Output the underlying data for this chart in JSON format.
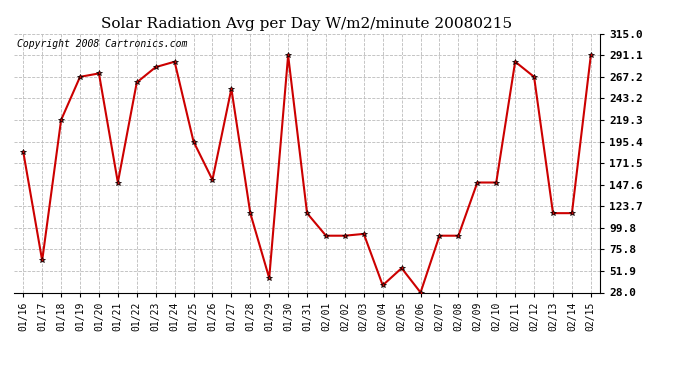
{
  "title": "Solar Radiation Avg per Day W/m2/minute 20080215",
  "copyright": "Copyright 2008 Cartronics.com",
  "dates": [
    "01/16",
    "01/17",
    "01/18",
    "01/19",
    "01/20",
    "01/21",
    "01/22",
    "01/23",
    "01/24",
    "01/25",
    "01/26",
    "01/27",
    "01/28",
    "01/29",
    "01/30",
    "01/31",
    "02/01",
    "02/02",
    "02/03",
    "02/04",
    "02/05",
    "02/06",
    "02/07",
    "02/08",
    "02/09",
    "02/10",
    "02/11",
    "02/12",
    "02/13",
    "02/14",
    "02/15"
  ],
  "values": [
    184.0,
    63.5,
    219.3,
    267.2,
    271.0,
    150.0,
    261.0,
    278.0,
    284.0,
    195.4,
    153.0,
    254.0,
    116.0,
    44.0,
    291.1,
    116.0,
    91.0,
    91.0,
    93.0,
    36.0,
    55.0,
    28.0,
    91.0,
    91.0,
    150.0,
    150.0,
    284.0,
    267.2,
    116.0,
    116.0,
    291.1
  ],
  "yticks": [
    28.0,
    51.9,
    75.8,
    99.8,
    123.7,
    147.6,
    171.5,
    195.4,
    219.3,
    243.2,
    267.2,
    291.1,
    315.0
  ],
  "line_color": "#cc0000",
  "marker": "*",
  "bg_color": "#ffffff",
  "grid_color": "#bbbbbb",
  "title_fontsize": 11,
  "copyright_fontsize": 7,
  "tick_fontsize": 7,
  "ytick_fontsize": 8,
  "ylim": [
    28.0,
    315.0
  ],
  "figsize": [
    6.9,
    3.75
  ],
  "dpi": 100
}
